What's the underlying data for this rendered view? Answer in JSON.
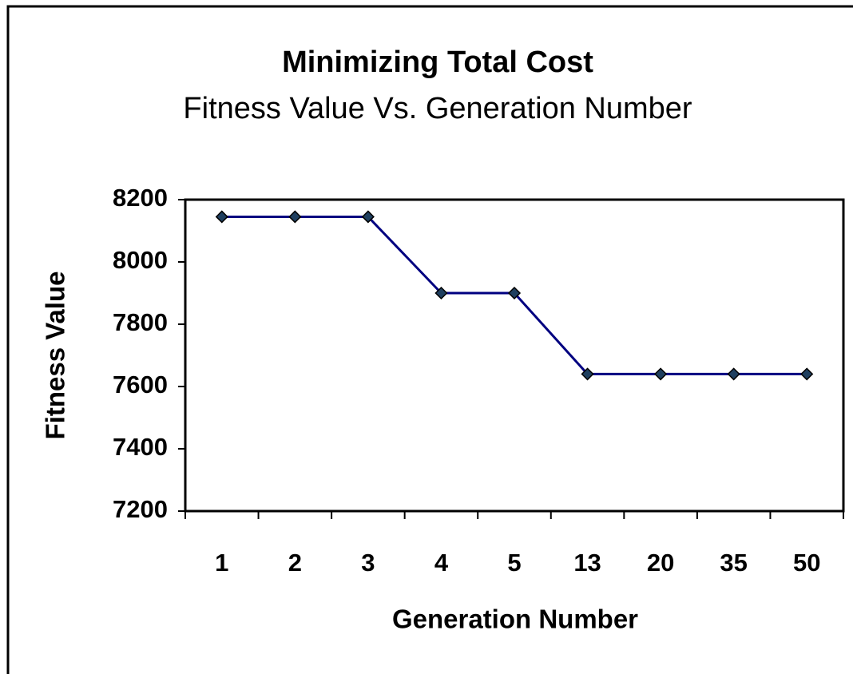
{
  "chart_data": {
    "type": "line",
    "title": "Minimizing Total Cost",
    "subtitle": "Fitness Value Vs. Generation Number",
    "x_label": "Generation Number",
    "y_label": "Fitness Value",
    "categories": [
      "1",
      "2",
      "3",
      "4",
      "5",
      "13",
      "20",
      "35",
      "50"
    ],
    "series": [
      {
        "name": "Fitness Value",
        "color": "#000080",
        "marker_color": "#1f3f5f",
        "values": [
          8145,
          8145,
          8145,
          7900,
          7900,
          7640,
          7640,
          7640,
          7640
        ]
      }
    ],
    "ylim": [
      7200,
      8200
    ],
    "yticks": [
      7200,
      7400,
      7600,
      7800,
      8000,
      8200
    ],
    "grid": false
  }
}
